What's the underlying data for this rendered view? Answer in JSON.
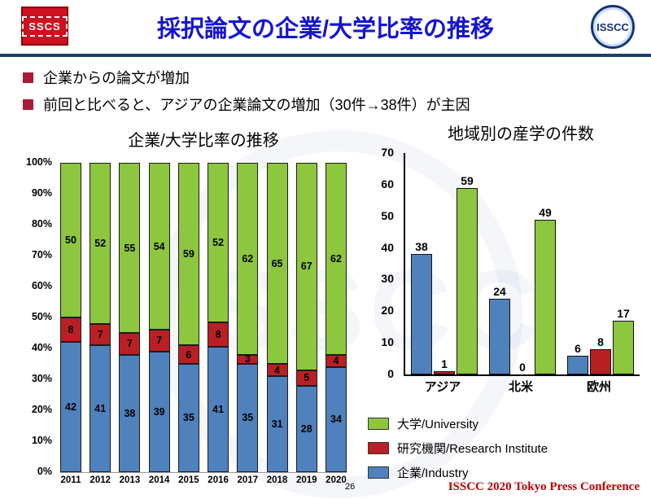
{
  "header": {
    "title": "採択論文の企業/大学比率の推移",
    "sscs_logo_text": "SSCS",
    "isscc_logo_text": "ISSCC"
  },
  "bullets": [
    "企業からの論文が増加",
    "前回と比べると、アジアの企業論文の増加（30件→38件）が主因"
  ],
  "page_number": "26",
  "footer": "ISSCC 2020 Tokyo Press Conference",
  "colors": {
    "industry_blue": "#4f81bd",
    "research_red": "#b92025",
    "university_green": "#8dc63f",
    "title_blue": "#1515cd",
    "rule_navy": "#1c3d6e",
    "bullet_maroon": "#a81a35",
    "footer_red": "#c00000"
  },
  "chart_data": [
    {
      "type": "bar",
      "subtype": "stacked-100-percent",
      "title": "企業/大学比率の推移",
      "categories": [
        "2011",
        "2012",
        "2013",
        "2014",
        "2015",
        "2016",
        "2017",
        "2018",
        "2019",
        "2020"
      ],
      "series": [
        {
          "name": "企業/Industry",
          "color": "#4f81bd",
          "values": [
            42,
            41,
            38,
            39,
            35,
            41,
            35,
            31,
            28,
            34
          ]
        },
        {
          "name": "研究機関/Research Institute",
          "color": "#b92025",
          "values": [
            8,
            7,
            7,
            7,
            6,
            8,
            3,
            4,
            5,
            4
          ]
        },
        {
          "name": "大学/University",
          "color": "#8dc63f",
          "values": [
            50,
            52,
            55,
            54,
            59,
            52,
            62,
            65,
            67,
            62
          ]
        }
      ],
      "y_ticks": [
        "100%",
        "90%",
        "80%",
        "70%",
        "60%",
        "50%",
        "40%",
        "30%",
        "20%",
        "10%",
        "0%"
      ],
      "ylim": [
        0,
        100
      ],
      "ylabel": "",
      "xlabel": "",
      "grid": false,
      "legend_position": "none"
    },
    {
      "type": "bar",
      "subtype": "grouped",
      "title": "地域別の産学の件数",
      "categories": [
        "アジア",
        "北米",
        "欧州"
      ],
      "series": [
        {
          "name": "企業/Industry",
          "color": "#4f81bd",
          "values": [
            38,
            24,
            6
          ]
        },
        {
          "name": "研究機関/Research Institute",
          "color": "#b92025",
          "values": [
            1,
            0,
            8
          ]
        },
        {
          "name": "大学/University",
          "color": "#8dc63f",
          "values": [
            59,
            49,
            17
          ]
        }
      ],
      "y_ticks": [
        70,
        60,
        50,
        40,
        30,
        20,
        10,
        0
      ],
      "ylim": [
        0,
        70
      ],
      "ylabel": "",
      "xlabel": "",
      "grid": false,
      "legend_position": "below"
    }
  ],
  "legend": [
    {
      "label": "大学/University",
      "color": "#8dc63f"
    },
    {
      "label": "研究機関/Research Institute",
      "color": "#b92025"
    },
    {
      "label": "企業/Industry",
      "color": "#4f81bd"
    }
  ]
}
